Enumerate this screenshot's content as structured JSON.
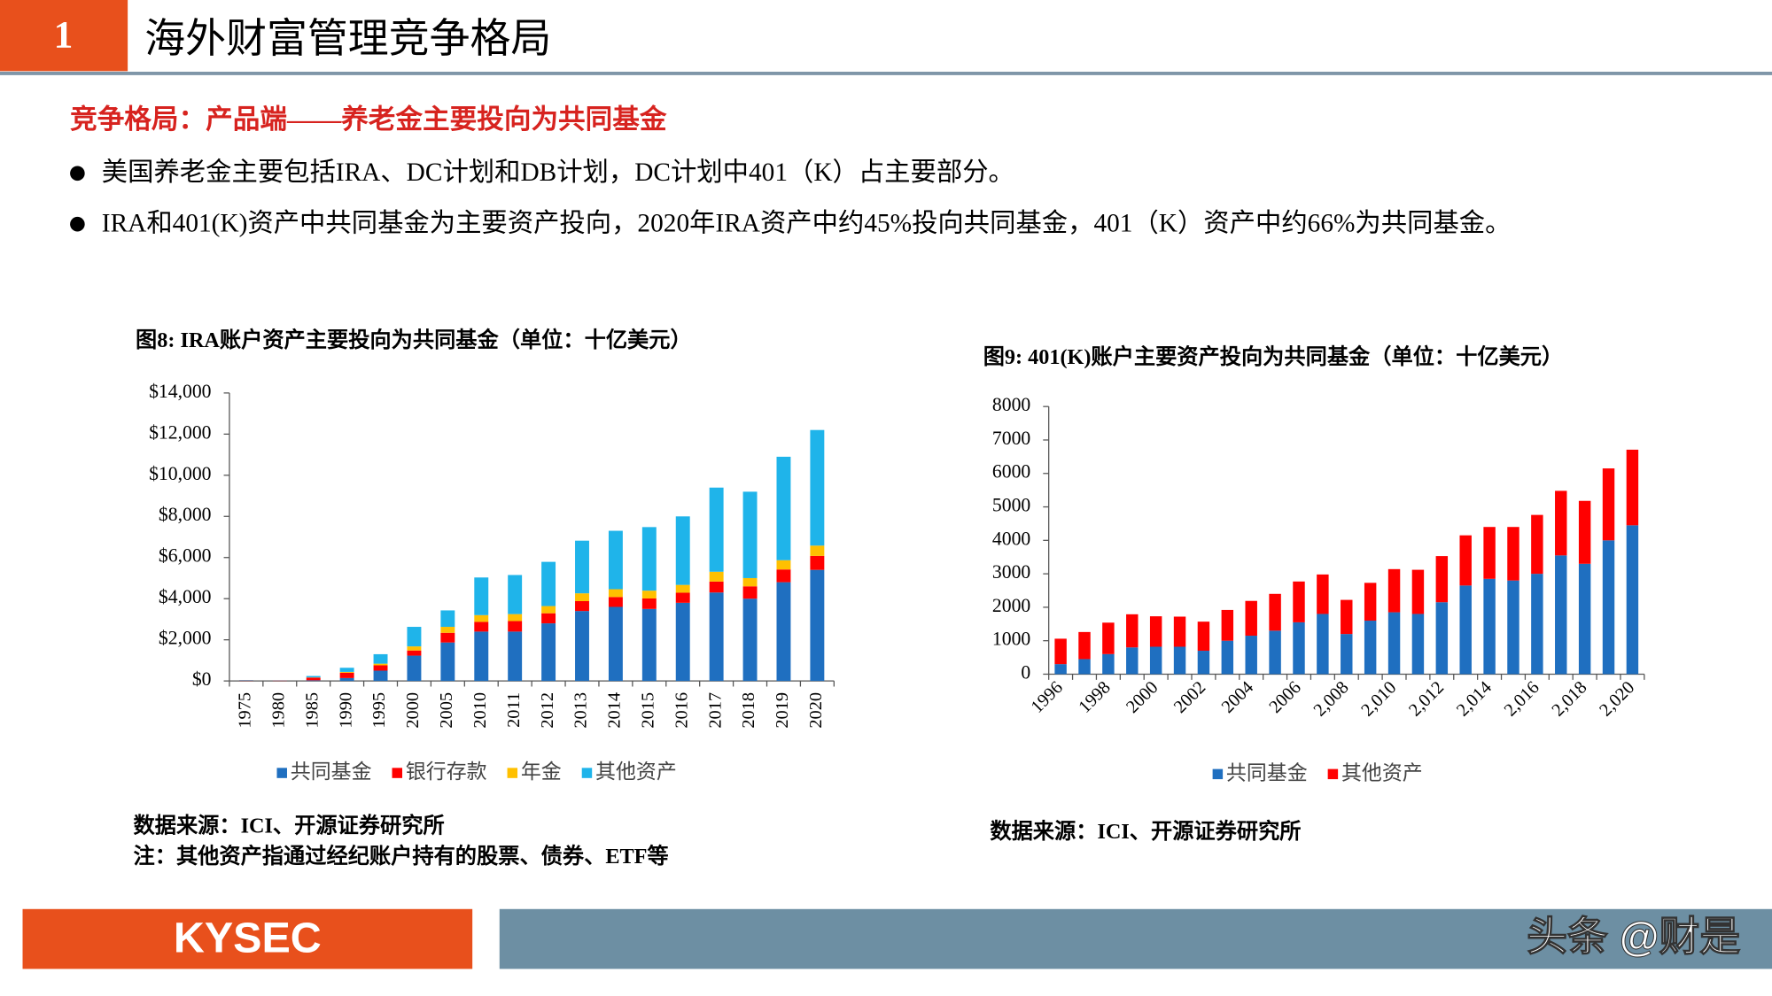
{
  "header": {
    "number": "1",
    "title": "海外财富管理竞争格局"
  },
  "subtitle": "竞争格局：产品端——养老金主要投向为共同基金",
  "bullets": [
    "美国养老金主要包括IRA、DC计划和DB计划，DC计划中401（K）占主要部分。",
    "IRA和401(K)资产中共同基金为主要资产投向，2020年IRA资产中约45%投向共同基金，401（K）资产中约66%为共同基金。"
  ],
  "chart_data": [
    {
      "type": "bar",
      "stacked": true,
      "title": "图8:  IRA账户资产主要投向为共同基金（单位：十亿美元）",
      "categories": [
        "1975",
        "1980",
        "1985",
        "1990",
        "1995",
        "2000",
        "2005",
        "2010",
        "2011",
        "2012",
        "2013",
        "2014",
        "2015",
        "2016",
        "2017",
        "2018",
        "2019",
        "2020"
      ],
      "series": [
        {
          "name": "共同基金",
          "color": "#1f6fc0",
          "values": [
            0,
            0,
            30,
            140,
            500,
            1230,
            1870,
            2400,
            2400,
            2800,
            3400,
            3600,
            3500,
            3800,
            4300,
            4000,
            4800,
            5400
          ]
        },
        {
          "name": "银行存款",
          "color": "#ff0000",
          "values": [
            20,
            20,
            130,
            260,
            260,
            250,
            470,
            470,
            510,
            490,
            480,
            480,
            510,
            490,
            530,
            600,
            620,
            680
          ]
        },
        {
          "name": "年金",
          "color": "#ffc000",
          "values": [
            0,
            0,
            10,
            40,
            80,
            200,
            290,
            330,
            340,
            350,
            380,
            380,
            380,
            380,
            480,
            400,
            450,
            500
          ]
        },
        {
          "name": "其他资产",
          "color": "#1fb4ea",
          "values": [
            20,
            10,
            70,
            200,
            460,
            950,
            800,
            1830,
            1900,
            2150,
            2560,
            2840,
            3090,
            3330,
            4090,
            4200,
            5030,
            5620
          ]
        }
      ],
      "ylim": [
        0,
        14000
      ],
      "yticks": [
        {
          "value": 0,
          "label": "$0"
        },
        {
          "value": 2000,
          "label": "$2,000"
        },
        {
          "value": 4000,
          "label": "$4,000"
        },
        {
          "value": 6000,
          "label": "$6,000"
        },
        {
          "value": 8000,
          "label": "$8,000"
        },
        {
          "value": 10000,
          "label": "$10,000"
        },
        {
          "value": 12000,
          "label": "$12,000"
        },
        {
          "value": 14000,
          "label": "$14,000"
        }
      ],
      "legend": "bottom",
      "source": "数据来源：ICI、开源证券研究所",
      "note": "注：其他资产指通过经纪账户持有的股票、债券、ETF等"
    },
    {
      "type": "bar",
      "stacked": true,
      "title": "图9:  401(K)账户主要资产投向为共同基金（单位：十亿美元）",
      "categories": [
        "1996",
        null,
        "1998",
        null,
        "2000",
        null,
        "2002",
        null,
        "2004",
        null,
        "2006",
        null,
        "2,008",
        null,
        "2,010",
        null,
        "2,012",
        null,
        "2,014",
        null,
        "2,016",
        null,
        "2,018",
        null,
        "2,020"
      ],
      "series": [
        {
          "name": "共同基金",
          "color": "#1f6fc0",
          "values": [
            300,
            450,
            600,
            800,
            820,
            820,
            700,
            1000,
            1150,
            1300,
            1550,
            1800,
            1200,
            1600,
            1850,
            1800,
            2150,
            2650,
            2850,
            2800,
            3000,
            3550,
            3300,
            4000,
            4450
          ]
        },
        {
          "name": "其他资产",
          "color": "#ff0000",
          "values": [
            760,
            810,
            940,
            990,
            910,
            900,
            870,
            920,
            1040,
            1100,
            1220,
            1180,
            1020,
            1130,
            1290,
            1320,
            1380,
            1500,
            1550,
            1600,
            1760,
            1930,
            1880,
            2150,
            2260
          ]
        }
      ],
      "ylim": [
        0,
        8000
      ],
      "yticks": [
        0,
        1000,
        2000,
        3000,
        4000,
        5000,
        6000,
        7000,
        8000
      ],
      "legend": "bottom",
      "source": "数据来源：ICI、开源证券研究所"
    }
  ],
  "footer": {
    "logo": "KYSEC",
    "watermark": "头条 @财是"
  }
}
